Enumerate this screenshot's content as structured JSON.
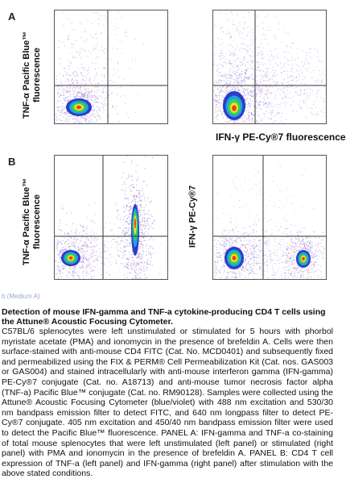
{
  "figure": {
    "panel_a": {
      "letter": "A",
      "ylabel_line1": "TNF-α Pacific Blue™",
      "ylabel_line2": "fluorescence",
      "xlabel": "IFN-γ PE-Cy®7 fluorescence"
    },
    "panel_b": {
      "letter": "B",
      "left_ylabel_line1": "TNF-α Pacific Blue™",
      "left_ylabel_line2": "fluorescence",
      "right_ylabel": "IFN-γ PE-Cy®7"
    },
    "legend_link": "b (Medium A)"
  },
  "caption": {
    "title": "Detection of mouse IFN-gamma and TNF-a cytokine-producing CD4 T cells using the Attune® Acoustic Focusing Cytometer.",
    "body": "C57BL/6 splenocytes were left unstimulated or stimulated for 5 hours with phorbol myristate acetate (PMA) and ionomycin in the presence of brefeldin A. Cells were then surface-stained with anti-mouse CD4 FITC (Cat. No. MCD0401) and subsequently fixed and permeabilized using the FIX & PERM® Cell Permeabilization Kit (Cat. nos. GAS003 or GAS004) and stained intracellularly with anti-mouse interferon gamma (IFN-gamma) PE-Cy®7 conjugate (Cat. no. A18713) and anti-mouse tumor necrosis factor alpha (TNF-a) Pacific Blue™ conjugate (Cat. no. RM90128). Samples were collected using the Attune® Acoustic Focusing Cytometer (blue/violet) with 488 nm excitation and 530/30 nm bandpass emission filter to detect FITC, and 640 nm longpass filter to detect PE-Cy®7 conjugate. 405 nm excitation and 450/40 nm bandpass emission filter were used to detect the Pacific Blue™ fluorescence. PANEL A: IFN-gamma and TNF-a co-staining of total mouse splenocytes that were left unstimulated (left panel) or stimulated (right panel) with PMA and ionomycin in the presence of brefeldin A. PANEL B: CD4 T cell expression of TNF-a (left panel) and IFN-gamma (right panel) after stimulation with the above stated conditions."
  }
}
